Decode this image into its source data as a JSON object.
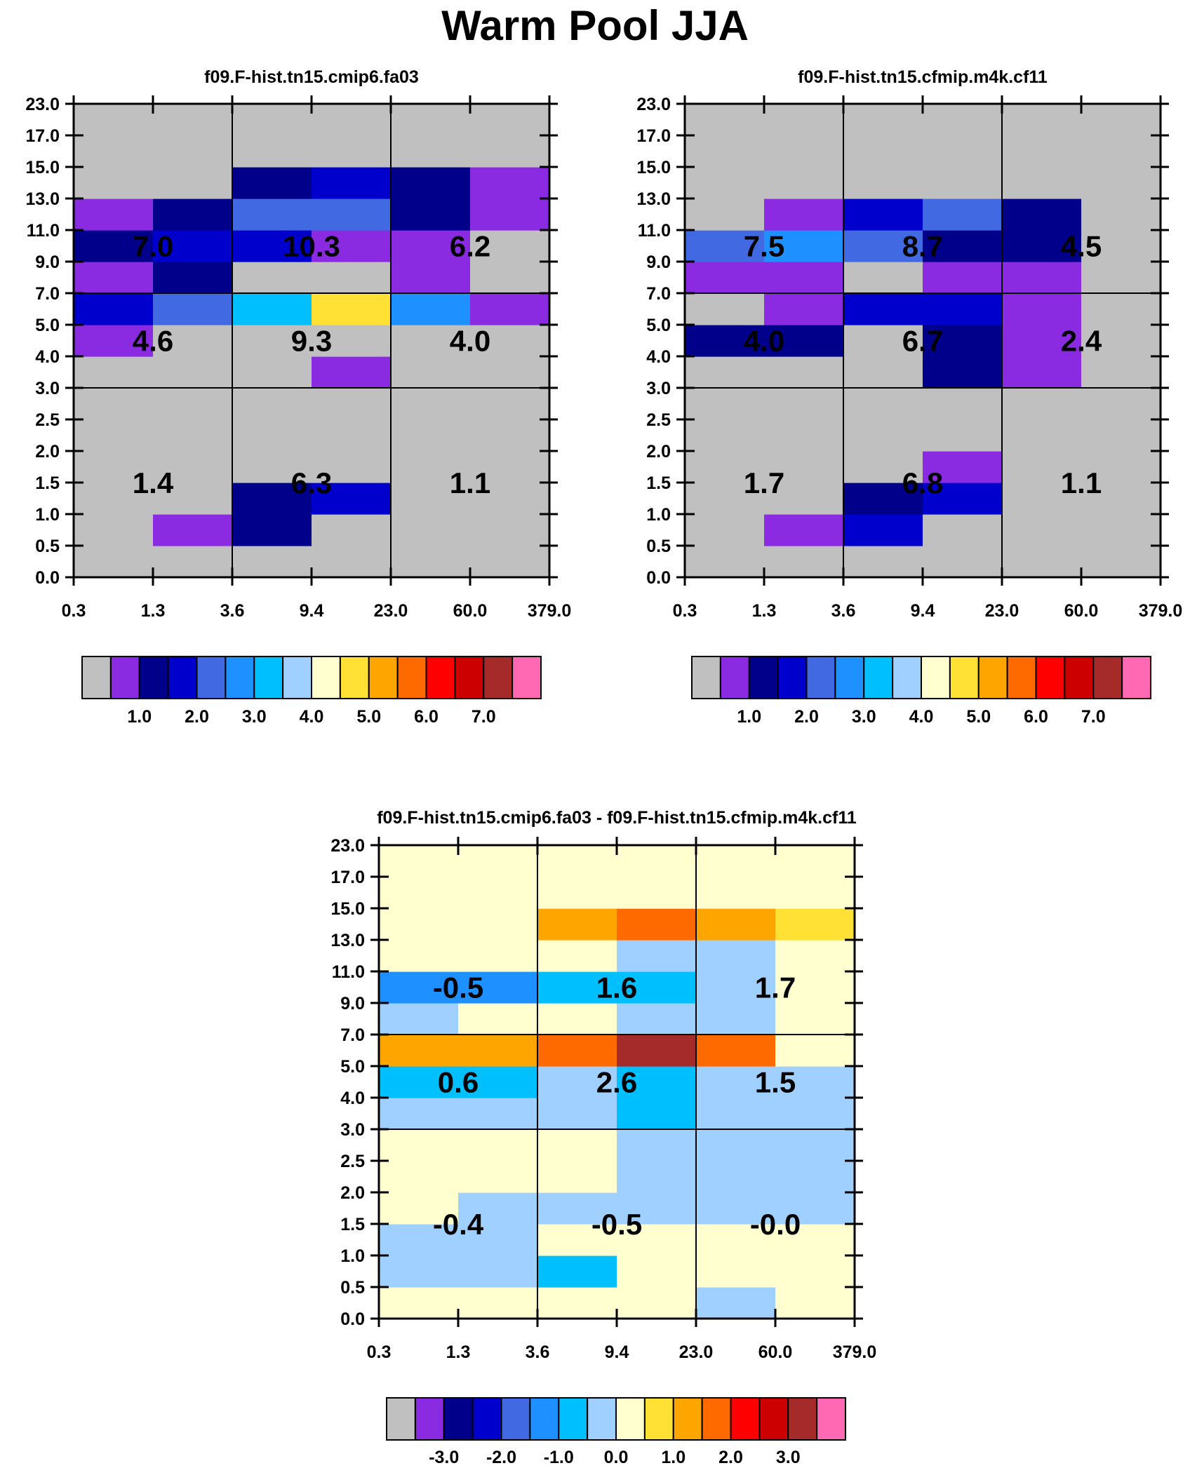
{
  "figure_title": "Warm Pool JJA",
  "colors": {
    "abs": [
      "#c0c0c0",
      "#8a2be2",
      "#00008b",
      "#0000cd",
      "#4169e1",
      "#1e90ff",
      "#00bfff",
      "#a0d0ff",
      "#ffffd0",
      "#ffe135",
      "#ffa500",
      "#ff6a00",
      "#ff0000",
      "#cc0000",
      "#a52a2a",
      "#ff69b4"
    ],
    "diff": [
      "#c0c0c0",
      "#8a2be2",
      "#00008b",
      "#0000cd",
      "#4169e1",
      "#1e90ff",
      "#00bfff",
      "#a0d0ff",
      "#ffffd0",
      "#ffe135",
      "#ffa500",
      "#ff6a00",
      "#ff0000",
      "#cc0000",
      "#a52a2a",
      "#ff69b4"
    ]
  },
  "chart_data": [
    {
      "type": "heatmap",
      "id": "panel1",
      "title": "f09.F-hist.tn15.cmip6.fa03",
      "xlabel": "",
      "ylabel": "",
      "x_tick_labels": [
        "0.3",
        "1.3",
        "3.6",
        "9.4",
        "23.0",
        "60.0",
        "379.0"
      ],
      "y_tick_labels": [
        "0.0",
        "0.5",
        "1.0",
        "1.5",
        "2.0",
        "2.5",
        "3.0",
        "4.0",
        "5.0",
        "7.0",
        "9.0",
        "11.0",
        "13.0",
        "15.0",
        "17.0",
        "23.0"
      ],
      "cell_color_index": [
        [
          0,
          0,
          0,
          0,
          0,
          0
        ],
        [
          0,
          1,
          2,
          0,
          0,
          0
        ],
        [
          0,
          0,
          2,
          3,
          0,
          0
        ],
        [
          0,
          0,
          0,
          0,
          0,
          0
        ],
        [
          0,
          0,
          0,
          0,
          0,
          0
        ],
        [
          0,
          0,
          0,
          0,
          0,
          0
        ],
        [
          0,
          0,
          0,
          1,
          0,
          0
        ],
        [
          1,
          0,
          0,
          0,
          0,
          0
        ],
        [
          3,
          4,
          6,
          9,
          5,
          1
        ],
        [
          1,
          2,
          0,
          0,
          1,
          0
        ],
        [
          2,
          3,
          3,
          1,
          1,
          0
        ],
        [
          1,
          2,
          4,
          4,
          2,
          1
        ],
        [
          0,
          0,
          2,
          3,
          2,
          1
        ],
        [
          0,
          0,
          0,
          0,
          0,
          0
        ],
        [
          0,
          0,
          0,
          0,
          0,
          0
        ]
      ],
      "group_labels": [
        {
          "col": 0,
          "row": 0,
          "text": "1.4"
        },
        {
          "col": 1,
          "row": 0,
          "text": "6.3"
        },
        {
          "col": 2,
          "row": 0,
          "text": "1.1"
        },
        {
          "col": 0,
          "row": 1,
          "text": "4.6"
        },
        {
          "col": 1,
          "row": 1,
          "text": "9.3"
        },
        {
          "col": 2,
          "row": 1,
          "text": "4.0"
        },
        {
          "col": 0,
          "row": 2,
          "text": "7.0"
        },
        {
          "col": 1,
          "row": 2,
          "text": "10.3"
        },
        {
          "col": 2,
          "row": 2,
          "text": "6.2"
        }
      ],
      "colorbar": {
        "palette": "abs",
        "tick_labels": [
          "1.0",
          "2.0",
          "3.0",
          "4.0",
          "5.0",
          "6.0",
          "7.0"
        ]
      }
    },
    {
      "type": "heatmap",
      "id": "panel2",
      "title": "f09.F-hist.tn15.cfmip.m4k.cf11",
      "xlabel": "",
      "ylabel": "",
      "x_tick_labels": [
        "0.3",
        "1.3",
        "3.6",
        "9.4",
        "23.0",
        "60.0",
        "379.0"
      ],
      "y_tick_labels": [
        "0.0",
        "0.5",
        "1.0",
        "1.5",
        "2.0",
        "2.5",
        "3.0",
        "4.0",
        "5.0",
        "7.0",
        "9.0",
        "11.0",
        "13.0",
        "15.0",
        "17.0",
        "23.0"
      ],
      "cell_color_index": [
        [
          0,
          0,
          0,
          0,
          0,
          0
        ],
        [
          0,
          1,
          3,
          0,
          0,
          0
        ],
        [
          0,
          0,
          2,
          3,
          0,
          0
        ],
        [
          0,
          0,
          0,
          1,
          0,
          0
        ],
        [
          0,
          0,
          0,
          0,
          0,
          0
        ],
        [
          0,
          0,
          0,
          0,
          0,
          0
        ],
        [
          0,
          0,
          0,
          2,
          1,
          0
        ],
        [
          2,
          2,
          0,
          2,
          1,
          0
        ],
        [
          0,
          1,
          3,
          3,
          1,
          0
        ],
        [
          1,
          1,
          0,
          1,
          1,
          0
        ],
        [
          4,
          5,
          4,
          2,
          2,
          0
        ],
        [
          0,
          1,
          3,
          4,
          2,
          0
        ],
        [
          0,
          0,
          0,
          0,
          0,
          0
        ],
        [
          0,
          0,
          0,
          0,
          0,
          0
        ],
        [
          0,
          0,
          0,
          0,
          0,
          0
        ]
      ],
      "group_labels": [
        {
          "col": 0,
          "row": 0,
          "text": "1.7"
        },
        {
          "col": 1,
          "row": 0,
          "text": "6.8"
        },
        {
          "col": 2,
          "row": 0,
          "text": "1.1"
        },
        {
          "col": 0,
          "row": 1,
          "text": "4.0"
        },
        {
          "col": 1,
          "row": 1,
          "text": "6.7"
        },
        {
          "col": 2,
          "row": 1,
          "text": "2.4"
        },
        {
          "col": 0,
          "row": 2,
          "text": "7.5"
        },
        {
          "col": 1,
          "row": 2,
          "text": "8.7"
        },
        {
          "col": 2,
          "row": 2,
          "text": "4.5"
        }
      ],
      "colorbar": {
        "palette": "abs",
        "tick_labels": [
          "1.0",
          "2.0",
          "3.0",
          "4.0",
          "5.0",
          "6.0",
          "7.0"
        ]
      }
    },
    {
      "type": "heatmap",
      "id": "panel3",
      "title": "f09.F-hist.tn15.cmip6.fa03 - f09.F-hist.tn15.cfmip.m4k.cf11",
      "xlabel": "",
      "ylabel": "",
      "x_tick_labels": [
        "0.3",
        "1.3",
        "3.6",
        "9.4",
        "23.0",
        "60.0",
        "379.0"
      ],
      "y_tick_labels": [
        "0.0",
        "0.5",
        "1.0",
        "1.5",
        "2.0",
        "2.5",
        "3.0",
        "4.0",
        "5.0",
        "7.0",
        "9.0",
        "11.0",
        "13.0",
        "15.0",
        "17.0",
        "23.0"
      ],
      "cell_color_index": [
        [
          8,
          8,
          8,
          8,
          7,
          8
        ],
        [
          7,
          7,
          6,
          8,
          8,
          8
        ],
        [
          7,
          7,
          8,
          8,
          8,
          8
        ],
        [
          8,
          7,
          7,
          7,
          7,
          7
        ],
        [
          8,
          8,
          8,
          7,
          7,
          7
        ],
        [
          8,
          8,
          8,
          7,
          7,
          7
        ],
        [
          7,
          7,
          7,
          6,
          7,
          7
        ],
        [
          6,
          6,
          7,
          6,
          7,
          7
        ],
        [
          10,
          10,
          11,
          14,
          11,
          8
        ],
        [
          7,
          8,
          8,
          7,
          7,
          8
        ],
        [
          5,
          5,
          6,
          6,
          7,
          8
        ],
        [
          8,
          8,
          8,
          7,
          7,
          8
        ],
        [
          8,
          8,
          10,
          11,
          10,
          9
        ],
        [
          8,
          8,
          8,
          8,
          8,
          8
        ],
        [
          8,
          8,
          8,
          8,
          8,
          8
        ]
      ],
      "group_labels": [
        {
          "col": 0,
          "row": 0,
          "text": "-0.4"
        },
        {
          "col": 1,
          "row": 0,
          "text": "-0.5"
        },
        {
          "col": 2,
          "row": 0,
          "text": "-0.0"
        },
        {
          "col": 0,
          "row": 1,
          "text": "0.6"
        },
        {
          "col": 1,
          "row": 1,
          "text": "2.6"
        },
        {
          "col": 2,
          "row": 1,
          "text": "1.5"
        },
        {
          "col": 0,
          "row": 2,
          "text": "-0.5"
        },
        {
          "col": 1,
          "row": 2,
          "text": "1.6"
        },
        {
          "col": 2,
          "row": 2,
          "text": "1.7"
        }
      ],
      "colorbar": {
        "palette": "diff",
        "tick_labels": [
          "-3.0",
          "-2.0",
          "-1.0",
          "0.0",
          "1.0",
          "2.0",
          "3.0"
        ]
      }
    }
  ]
}
